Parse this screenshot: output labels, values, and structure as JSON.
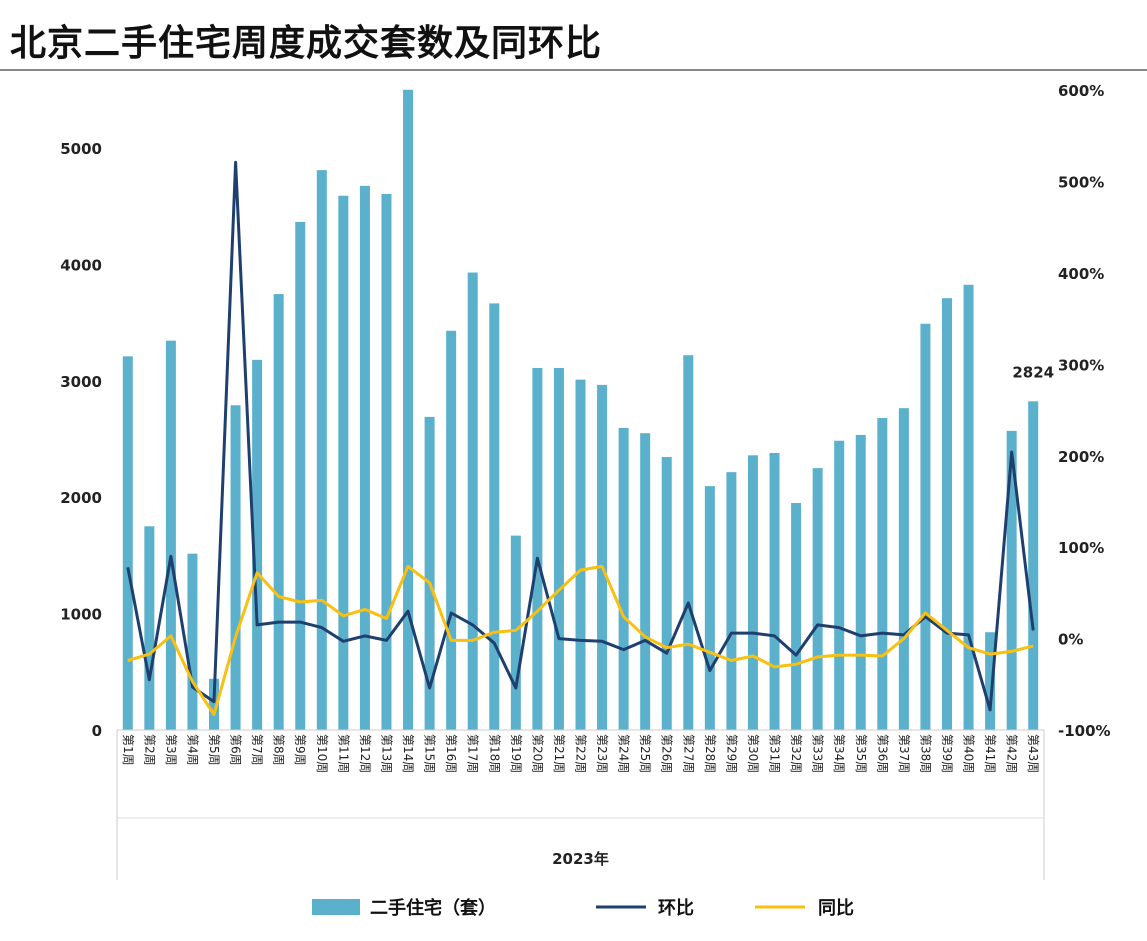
{
  "title": "北京二手住宅周度成交套数及同环比",
  "chart_data": {
    "type": "bar+line",
    "title": "北京二手住宅周度成交套数及同环比",
    "group_label": "2023年",
    "categories": [
      "第1周",
      "第2周",
      "第3周",
      "第4周",
      "第5周",
      "第6周",
      "第7周",
      "第8周",
      "第9周",
      "第10周",
      "第11周",
      "第12周",
      "第13周",
      "第14周",
      "第15周",
      "第16周",
      "第17周",
      "第18周",
      "第19周",
      "第20周",
      "第21周",
      "第22周",
      "第23周",
      "第24周",
      "第25周",
      "第26周",
      "第27周",
      "第28周",
      "第29周",
      "第30周",
      "第31周",
      "第32周",
      "第33周",
      "第34周",
      "第35周",
      "第36周",
      "第37周",
      "第38周",
      "第39周",
      "第40周",
      "第41周",
      "第42周",
      "第43周"
    ],
    "left_axis": {
      "ylim": [
        0,
        5500
      ],
      "ticks": [
        "0",
        "1000",
        "2000",
        "3000",
        "4000",
        "5000"
      ]
    },
    "right_axis": {
      "ylim": [
        -100,
        600
      ],
      "ticks": [
        "-100%",
        "0%",
        "100%",
        "200%",
        "300%",
        "400%",
        "500%",
        "600%"
      ]
    },
    "series": [
      {
        "name": "二手住宅（套）",
        "type": "bar",
        "axis": "left",
        "color": "#5BB1CC",
        "values": [
          3210,
          1750,
          3345,
          1515,
          440,
          2790,
          3180,
          3745,
          4365,
          4810,
          4590,
          4675,
          4605,
          5500,
          2690,
          3430,
          3930,
          3665,
          1670,
          3110,
          3110,
          3010,
          2965,
          2595,
          2550,
          2345,
          3220,
          2095,
          2215,
          2360,
          2380,
          1950,
          2250,
          2485,
          2535,
          2680,
          2765,
          3490,
          3710,
          3825,
          840,
          2570,
          2824
        ]
      },
      {
        "name": "环比",
        "type": "line",
        "axis": "right",
        "color": "#1F3F6E",
        "values": [
          78,
          -45,
          90,
          -53,
          -69,
          521,
          15,
          18,
          18,
          12,
          -3,
          3,
          -2,
          30,
          -54,
          28,
          15,
          -5,
          -54,
          88,
          0,
          -2,
          -3,
          -12,
          -2,
          -16,
          39,
          -35,
          6,
          6,
          3,
          -18,
          15,
          12,
          3,
          6,
          4,
          24,
          6,
          4,
          -78,
          204,
          9
        ]
      },
      {
        "name": "同比",
        "type": "line",
        "axis": "right",
        "color": "#F9C011",
        "values": [
          -24,
          -17,
          3,
          -47,
          -83,
          2,
          72,
          46,
          40,
          42,
          25,
          32,
          22,
          79,
          61,
          -2,
          -2,
          7,
          9,
          30,
          53,
          75,
          79,
          24,
          2,
          -10,
          -6,
          -15,
          -24,
          -19,
          -31,
          -28,
          -20,
          -18,
          -18,
          -19,
          0,
          28,
          9,
          -10,
          -17,
          -14,
          -8
        ]
      }
    ],
    "data_labels": [
      {
        "category": "第43周",
        "text": "2824"
      }
    ],
    "legend": "bottom",
    "grid": false
  }
}
